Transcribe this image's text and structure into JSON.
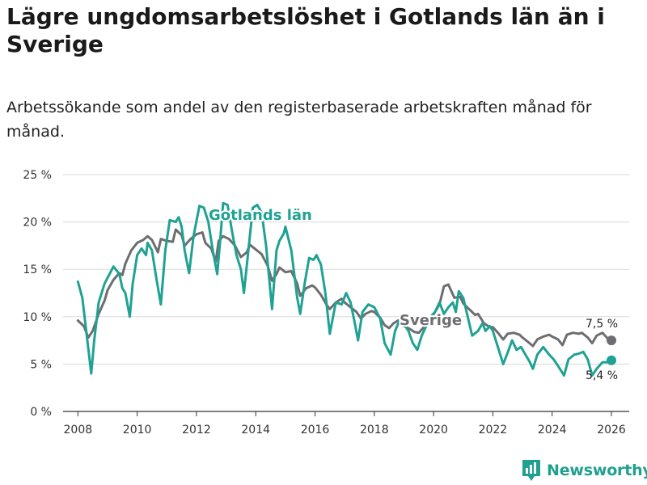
{
  "header": {
    "title": "Lägre ungdomsarbetslöshet i Gotlands län än i Sverige",
    "subtitle": "Arbetssökande som andel av den registerbaserade arbetskraften månad för månad."
  },
  "brand": {
    "name": "Newsworthy",
    "icon": "bar-chart-logo-icon",
    "color": "#20a08e"
  },
  "chart_data": {
    "type": "line",
    "title": "Lägre ungdomsarbetslöshet i Gotlands län än i Sverige",
    "xlabel": "",
    "ylabel": "",
    "xlim": [
      2007.5,
      2026.6
    ],
    "ylim": [
      0,
      25
    ],
    "yticks": [
      0,
      5,
      10,
      15,
      20,
      25
    ],
    "ytick_labels": [
      "0 %",
      "5 %",
      "10 %",
      "15 %",
      "20 %",
      "25 %"
    ],
    "xticks": [
      2008,
      2010,
      2012,
      2014,
      2016,
      2018,
      2020,
      2022,
      2024,
      2026
    ],
    "xtick_labels": [
      "2008",
      "2010",
      "2012",
      "2014",
      "2016",
      "2018",
      "2020",
      "2022",
      "2024",
      "2026"
    ],
    "grid": "horizontal",
    "series": [
      {
        "name": "Sverige",
        "color": "#6e6e72",
        "end_label": "7,5 %",
        "points": [
          [
            2008.0,
            9.6
          ],
          [
            2008.2,
            9.0
          ],
          [
            2008.35,
            7.8
          ],
          [
            2008.5,
            8.5
          ],
          [
            2008.7,
            10.3
          ],
          [
            2008.9,
            11.7
          ],
          [
            2009.0,
            12.8
          ],
          [
            2009.2,
            13.9
          ],
          [
            2009.4,
            14.6
          ],
          [
            2009.5,
            14.4
          ],
          [
            2009.6,
            15.6
          ],
          [
            2009.8,
            17.0
          ],
          [
            2010.0,
            17.8
          ],
          [
            2010.2,
            18.1
          ],
          [
            2010.35,
            18.5
          ],
          [
            2010.5,
            18.1
          ],
          [
            2010.7,
            16.8
          ],
          [
            2010.8,
            18.2
          ],
          [
            2011.0,
            18.0
          ],
          [
            2011.2,
            17.9
          ],
          [
            2011.3,
            19.2
          ],
          [
            2011.5,
            18.6
          ],
          [
            2011.6,
            17.5
          ],
          [
            2011.8,
            18.2
          ],
          [
            2012.0,
            18.7
          ],
          [
            2012.2,
            18.9
          ],
          [
            2012.3,
            17.8
          ],
          [
            2012.5,
            17.2
          ],
          [
            2012.65,
            15.8
          ],
          [
            2012.75,
            18.0
          ],
          [
            2012.9,
            18.5
          ],
          [
            2013.1,
            18.2
          ],
          [
            2013.3,
            17.5
          ],
          [
            2013.5,
            16.3
          ],
          [
            2013.7,
            16.8
          ],
          [
            2013.8,
            17.6
          ],
          [
            2014.0,
            17.1
          ],
          [
            2014.2,
            16.6
          ],
          [
            2014.4,
            15.4
          ],
          [
            2014.55,
            13.8
          ],
          [
            2014.7,
            14.5
          ],
          [
            2014.8,
            15.2
          ],
          [
            2015.0,
            14.7
          ],
          [
            2015.2,
            14.8
          ],
          [
            2015.4,
            13.5
          ],
          [
            2015.5,
            12.2
          ],
          [
            2015.7,
            13.0
          ],
          [
            2015.9,
            13.3
          ],
          [
            2016.0,
            13.1
          ],
          [
            2016.2,
            12.3
          ],
          [
            2016.4,
            11.2
          ],
          [
            2016.5,
            10.8
          ],
          [
            2016.7,
            11.5
          ],
          [
            2016.9,
            11.9
          ],
          [
            2017.0,
            11.5
          ],
          [
            2017.2,
            11.0
          ],
          [
            2017.4,
            10.5
          ],
          [
            2017.55,
            9.8
          ],
          [
            2017.7,
            10.3
          ],
          [
            2017.9,
            10.6
          ],
          [
            2018.0,
            10.5
          ],
          [
            2018.2,
            9.9
          ],
          [
            2018.35,
            9.1
          ],
          [
            2018.5,
            8.8
          ],
          [
            2018.65,
            9.3
          ],
          [
            2018.8,
            9.6
          ],
          [
            2019.0,
            9.0
          ],
          [
            2019.2,
            8.7
          ],
          [
            2019.35,
            8.4
          ],
          [
            2019.5,
            8.3
          ],
          [
            2019.7,
            9.0
          ],
          [
            2019.9,
            9.8
          ],
          [
            2020.05,
            10.5
          ],
          [
            2020.2,
            11.3
          ],
          [
            2020.35,
            13.2
          ],
          [
            2020.5,
            13.4
          ],
          [
            2020.7,
            12.0
          ],
          [
            2020.9,
            12.1
          ],
          [
            2021.0,
            11.4
          ],
          [
            2021.2,
            10.8
          ],
          [
            2021.4,
            10.2
          ],
          [
            2021.5,
            10.3
          ],
          [
            2021.7,
            9.3
          ],
          [
            2021.9,
            8.9
          ],
          [
            2022.0,
            8.9
          ],
          [
            2022.2,
            8.2
          ],
          [
            2022.35,
            7.6
          ],
          [
            2022.5,
            8.2
          ],
          [
            2022.7,
            8.3
          ],
          [
            2022.9,
            8.1
          ],
          [
            2023.0,
            7.8
          ],
          [
            2023.2,
            7.3
          ],
          [
            2023.35,
            6.9
          ],
          [
            2023.5,
            7.6
          ],
          [
            2023.7,
            7.9
          ],
          [
            2023.9,
            8.1
          ],
          [
            2024.0,
            7.9
          ],
          [
            2024.2,
            7.6
          ],
          [
            2024.35,
            7.0
          ],
          [
            2024.5,
            8.1
          ],
          [
            2024.7,
            8.3
          ],
          [
            2024.9,
            8.2
          ],
          [
            2025.0,
            8.3
          ],
          [
            2025.2,
            7.8
          ],
          [
            2025.35,
            7.2
          ],
          [
            2025.5,
            8.0
          ],
          [
            2025.7,
            8.3
          ],
          [
            2025.9,
            7.6
          ],
          [
            2026.0,
            7.5
          ]
        ]
      },
      {
        "name": "Gotlands län",
        "color": "#1fa293",
        "end_label": "5,4 %",
        "points": [
          [
            2008.0,
            13.7
          ],
          [
            2008.15,
            12.0
          ],
          [
            2008.3,
            8.0
          ],
          [
            2008.45,
            4.0
          ],
          [
            2008.55,
            7.5
          ],
          [
            2008.7,
            11.5
          ],
          [
            2008.9,
            13.5
          ],
          [
            2009.0,
            14.1
          ],
          [
            2009.2,
            15.3
          ],
          [
            2009.4,
            14.5
          ],
          [
            2009.5,
            13.0
          ],
          [
            2009.6,
            12.5
          ],
          [
            2009.75,
            10.0
          ],
          [
            2009.85,
            13.5
          ],
          [
            2010.0,
            16.5
          ],
          [
            2010.15,
            17.2
          ],
          [
            2010.3,
            16.5
          ],
          [
            2010.35,
            17.8
          ],
          [
            2010.5,
            17.0
          ],
          [
            2010.65,
            14.0
          ],
          [
            2010.8,
            11.3
          ],
          [
            2010.95,
            17.0
          ],
          [
            2011.1,
            20.2
          ],
          [
            2011.3,
            20.0
          ],
          [
            2011.4,
            20.5
          ],
          [
            2011.5,
            19.5
          ],
          [
            2011.6,
            17.0
          ],
          [
            2011.75,
            14.6
          ],
          [
            2011.9,
            18.5
          ],
          [
            2012.1,
            21.7
          ],
          [
            2012.25,
            21.5
          ],
          [
            2012.4,
            20.0
          ],
          [
            2012.55,
            17.0
          ],
          [
            2012.7,
            14.5
          ],
          [
            2012.8,
            18.0
          ],
          [
            2012.9,
            22.0
          ],
          [
            2013.05,
            21.8
          ],
          [
            2013.2,
            19.0
          ],
          [
            2013.35,
            16.5
          ],
          [
            2013.5,
            15.0
          ],
          [
            2013.6,
            12.5
          ],
          [
            2013.75,
            17.0
          ],
          [
            2013.9,
            21.5
          ],
          [
            2014.05,
            21.8
          ],
          [
            2014.2,
            21.0
          ],
          [
            2014.35,
            17.5
          ],
          [
            2014.55,
            10.8
          ],
          [
            2014.7,
            17.0
          ],
          [
            2014.8,
            18.0
          ],
          [
            2014.95,
            18.8
          ],
          [
            2015.0,
            19.5
          ],
          [
            2015.2,
            17.0
          ],
          [
            2015.4,
            12.0
          ],
          [
            2015.5,
            10.3
          ],
          [
            2015.65,
            13.5
          ],
          [
            2015.8,
            16.2
          ],
          [
            2015.95,
            16.0
          ],
          [
            2016.05,
            16.5
          ],
          [
            2016.2,
            15.5
          ],
          [
            2016.35,
            12.5
          ],
          [
            2016.5,
            8.2
          ],
          [
            2016.7,
            11.5
          ],
          [
            2016.9,
            11.3
          ],
          [
            2017.05,
            12.5
          ],
          [
            2017.2,
            11.5
          ],
          [
            2017.35,
            9.2
          ],
          [
            2017.45,
            7.5
          ],
          [
            2017.6,
            10.5
          ],
          [
            2017.8,
            11.3
          ],
          [
            2018.0,
            11.0
          ],
          [
            2018.2,
            9.8
          ],
          [
            2018.35,
            7.2
          ],
          [
            2018.55,
            6.0
          ],
          [
            2018.7,
            8.5
          ],
          [
            2018.85,
            9.6
          ],
          [
            2019.0,
            9.2
          ],
          [
            2019.15,
            8.5
          ],
          [
            2019.3,
            7.2
          ],
          [
            2019.45,
            6.5
          ],
          [
            2019.6,
            8.0
          ],
          [
            2019.75,
            9.0
          ],
          [
            2019.9,
            10.0
          ],
          [
            2020.05,
            10.5
          ],
          [
            2020.2,
            11.5
          ],
          [
            2020.35,
            10.3
          ],
          [
            2020.5,
            11.0
          ],
          [
            2020.65,
            11.5
          ],
          [
            2020.75,
            10.5
          ],
          [
            2020.85,
            12.7
          ],
          [
            2021.0,
            12.0
          ],
          [
            2021.15,
            10.0
          ],
          [
            2021.3,
            8.0
          ],
          [
            2021.5,
            8.5
          ],
          [
            2021.65,
            9.3
          ],
          [
            2021.75,
            8.5
          ],
          [
            2021.9,
            9.0
          ],
          [
            2022.0,
            8.5
          ],
          [
            2022.15,
            7.0
          ],
          [
            2022.35,
            5.0
          ],
          [
            2022.5,
            6.2
          ],
          [
            2022.65,
            7.5
          ],
          [
            2022.8,
            6.5
          ],
          [
            2022.95,
            6.8
          ],
          [
            2023.1,
            6.0
          ],
          [
            2023.25,
            5.2
          ],
          [
            2023.35,
            4.5
          ],
          [
            2023.5,
            6.0
          ],
          [
            2023.7,
            6.8
          ],
          [
            2023.9,
            6.0
          ],
          [
            2024.05,
            5.5
          ],
          [
            2024.2,
            4.8
          ],
          [
            2024.4,
            3.8
          ],
          [
            2024.55,
            5.5
          ],
          [
            2024.75,
            6.0
          ],
          [
            2024.9,
            6.1
          ],
          [
            2025.05,
            6.3
          ],
          [
            2025.2,
            5.5
          ],
          [
            2025.35,
            3.8
          ],
          [
            2025.5,
            4.5
          ],
          [
            2025.7,
            5.2
          ],
          [
            2025.85,
            5.2
          ],
          [
            2026.0,
            5.4
          ]
        ]
      }
    ],
    "annotations": [
      {
        "text": "Gotlands län",
        "series": "Gotlands län"
      },
      {
        "text": "Sverige",
        "series": "Sverige"
      }
    ]
  }
}
